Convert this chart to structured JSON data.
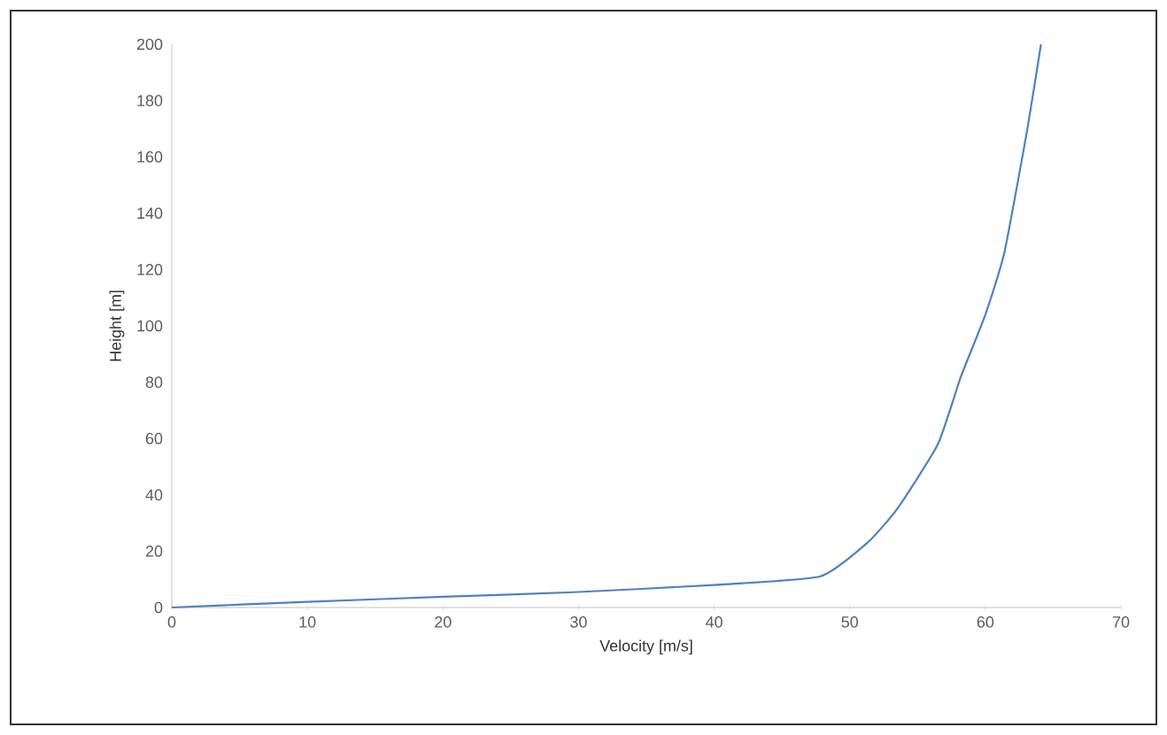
{
  "chart_data": {
    "type": "line",
    "xlabel": "Velocity [m/s]",
    "ylabel": "Height [m]",
    "x": [
      0,
      10,
      20,
      30,
      40,
      47.8,
      51.3,
      53.5,
      56.5,
      58.2,
      60,
      61.4,
      63.1,
      64.1
    ],
    "series": [
      {
        "color": "#4f81bd",
        "values": [
          0,
          2,
          3.8,
          5.5,
          8,
          11,
          23,
          35,
          58,
          82,
          104,
          126,
          170,
          200
        ]
      }
    ],
    "xlim": [
      0,
      70
    ],
    "ylim": [
      0,
      200
    ],
    "xticks": [
      0,
      10,
      20,
      30,
      40,
      50,
      60,
      70
    ],
    "yticks": [
      0,
      20,
      40,
      60,
      80,
      100,
      120,
      140,
      160,
      180,
      200
    ],
    "grid": false,
    "marker": "none",
    "line_style": "solid"
  }
}
